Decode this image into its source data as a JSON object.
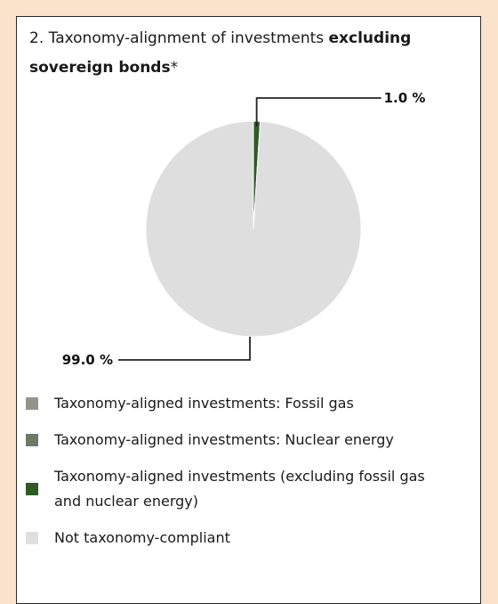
{
  "title": {
    "prefix": "2. Taxonomy-alignment of investments ",
    "bold": "excluding sovereign bonds",
    "suffix": "*"
  },
  "chart_data": {
    "type": "pie",
    "slices": [
      {
        "label": "Taxonomy-aligned investments: Fossil gas",
        "value": 0.0,
        "color": "#94958a"
      },
      {
        "label": "Taxonomy-aligned investments: Nuclear energy",
        "value": 0.0,
        "color": "#6f7a66"
      },
      {
        "label": "Taxonomy-aligned investments (excluding fossil gas and nuclear energy)",
        "value": 1.0,
        "color": "#2e5a26"
      },
      {
        "label": "Not taxonomy-compliant",
        "value": 99.0,
        "color": "#dedede"
      }
    ],
    "data_labels": [
      {
        "text": "1.0 %",
        "slice": 2
      },
      {
        "text": "99.0 %",
        "slice": 3
      }
    ]
  },
  "legend": {
    "items": [
      {
        "label": "Taxonomy-aligned investments: Fossil gas",
        "color": "#94958a"
      },
      {
        "label": "Taxonomy-aligned investments: Nuclear energy",
        "color": "#6f7a66"
      },
      {
        "label": "Taxonomy-aligned investments (excluding fossil gas and nuclear energy)",
        "color": "#2e5a26"
      },
      {
        "label": "Not taxonomy-compliant",
        "color": "#dedede"
      }
    ]
  }
}
